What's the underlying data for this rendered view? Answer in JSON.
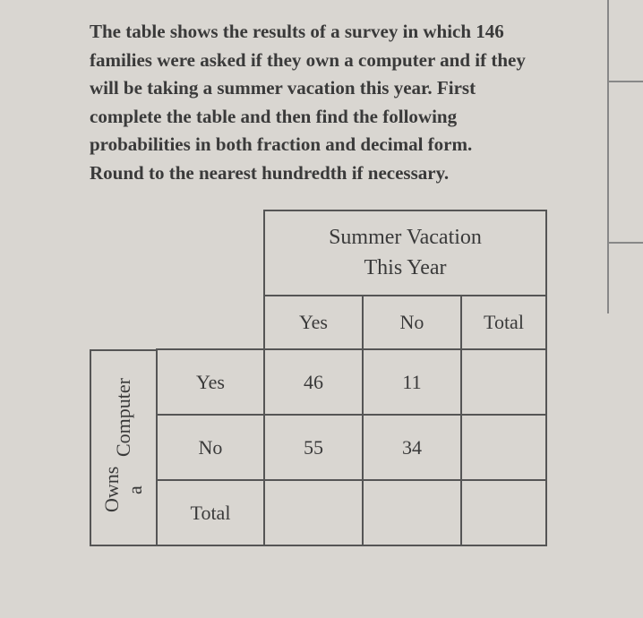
{
  "problem": {
    "text": "The table shows the results of a survey in which 146 families were asked if they own a computer and if they will be taking a summer vacation this year. First complete the table and then find the following probabilities in both fraction and decimal form.  Round to the nearest hundredth if necessary."
  },
  "table": {
    "col_group_label_line1": "Summer Vacation",
    "col_group_label_line2": "This Year",
    "row_group_label_line1": "Owns a",
    "row_group_label_line2": "Computer",
    "col_headers": {
      "c1": "Yes",
      "c2": "No",
      "c3": "Total"
    },
    "row_headers": {
      "r1": "Yes",
      "r2": "No",
      "r3": "Total"
    },
    "cells": {
      "r1c1": "46",
      "r1c2": "11",
      "r1c3": "",
      "r2c1": "55",
      "r2c2": "34",
      "r2c3": "",
      "r3c1": "",
      "r3c2": "",
      "r3c3": ""
    }
  },
  "style": {
    "background_color": "#d9d6d1",
    "text_color": "#3a3a3a",
    "border_color": "#555555",
    "body_fontsize": 21,
    "table_fontsize": 22,
    "header_fontsize": 24,
    "font_family": "Georgia"
  }
}
